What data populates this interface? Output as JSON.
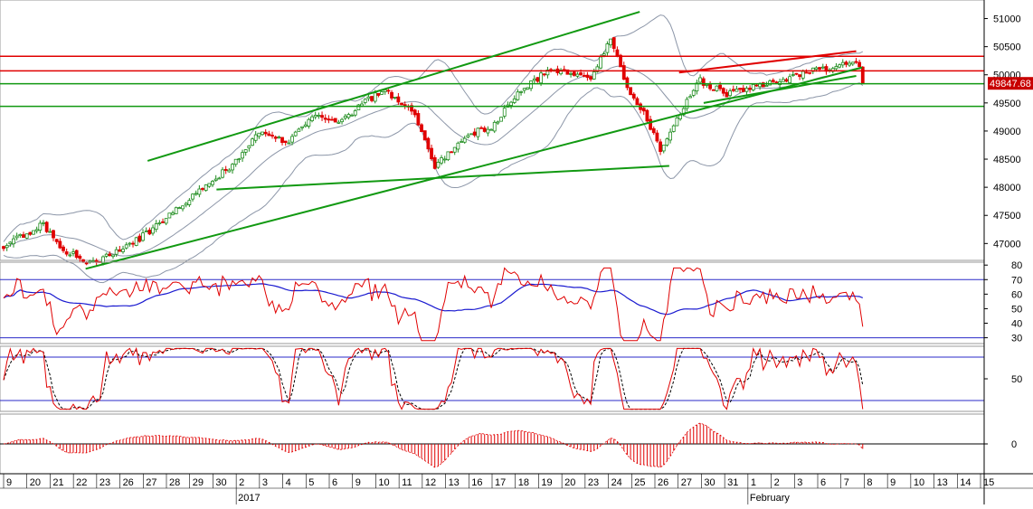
{
  "colors": {
    "background": "#ffffff",
    "candle_up": "#1e8c1e",
    "candle_down": "#e00000",
    "bollinger": "#8c96a8",
    "trendline_green": "#119911",
    "level_red": "#e00000",
    "level_green": "#119911",
    "rsi_line": "#e00000",
    "rsi_avg": "#1a1ad0",
    "guide_blue": "#2a2ac8",
    "stoch_k": "#e00000",
    "stoch_d": "#000000",
    "hist": "#e00000",
    "price_tag_bg": "#c80000"
  },
  "chart_data": [
    {
      "panel": "price",
      "type": "candlestick",
      "y_ticks": [
        "51000",
        "50500",
        "50000",
        "49500",
        "49000",
        "48500",
        "48000",
        "47500",
        "47000"
      ],
      "y_tick_values": [
        51000,
        50500,
        50000,
        49500,
        49000,
        48500,
        48000,
        47500,
        47000
      ],
      "ylim": [
        46700,
        51330
      ],
      "last_price_label": "49847.68",
      "last_price": 49847.68,
      "close_start": 46940,
      "red_levels": [
        50330,
        50070
      ],
      "green_levels": [
        49840,
        49440
      ],
      "channel_upper": [
        [
          0.15,
          48470
        ],
        [
          0.65,
          51120
        ]
      ],
      "channel_lower": [
        [
          0.087,
          46550
        ],
        [
          0.876,
          50130
        ]
      ],
      "support": [
        [
          0.22,
          47960
        ],
        [
          0.68,
          48380
        ]
      ],
      "wedge_upper": [
        [
          0.69,
          50040
        ],
        [
          0.87,
          50420
        ]
      ],
      "wedge_lower": [
        [
          0.715,
          49500
        ],
        [
          0.87,
          49980
        ]
      ],
      "grid": false
    },
    {
      "panel": "rsi",
      "type": "line",
      "y_ticks": [
        "80",
        "70",
        "60",
        "50",
        "40",
        "30"
      ],
      "y_tick_values": [
        80,
        70,
        60,
        50,
        40,
        30
      ],
      "ylim": [
        26,
        82
      ],
      "guides": [
        70,
        30
      ]
    },
    {
      "panel": "stochastic",
      "type": "line",
      "y_ticks": [
        "50"
      ],
      "y_tick_values": [
        50
      ],
      "ylim": [
        5,
        95
      ],
      "guides": [
        80,
        20
      ]
    },
    {
      "panel": "macd_histogram",
      "type": "bar",
      "y_ticks": [
        "0"
      ],
      "y_tick_values": [
        0
      ],
      "ylim": [
        -70,
        70
      ]
    },
    {
      "panel": "time_axis",
      "type": "axis",
      "day_labels": [
        "9",
        "20",
        "21",
        "22",
        "23",
        "26",
        "27",
        "28",
        "29",
        "30",
        "2",
        "3",
        "4",
        "5",
        "6",
        "9",
        "10",
        "11",
        "12",
        "13",
        "16",
        "17",
        "18",
        "19",
        "20",
        "23",
        "24",
        "25",
        "26",
        "27",
        "30",
        "31",
        "1",
        "2",
        "3",
        "6",
        "7",
        "8",
        "9",
        "10",
        "13",
        "14",
        "15"
      ],
      "period_labels": [
        "2017",
        "February"
      ]
    }
  ]
}
